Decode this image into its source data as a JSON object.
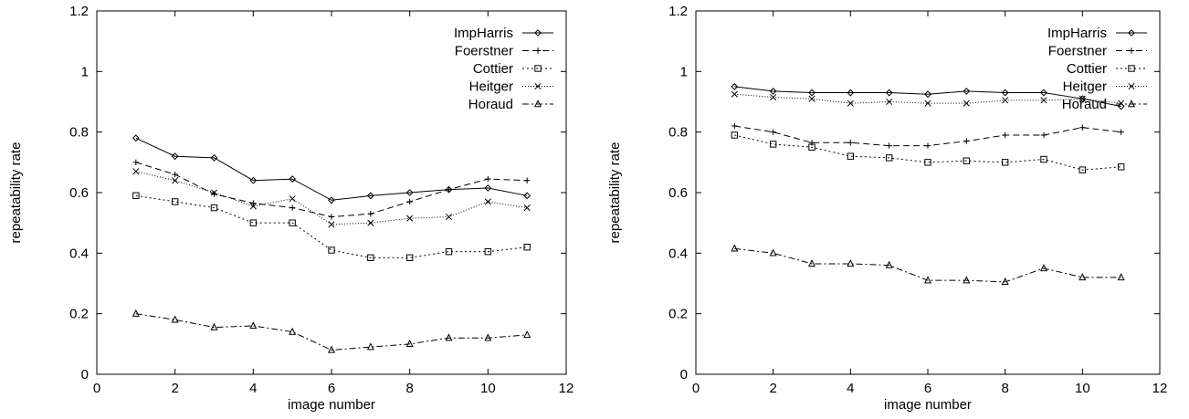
{
  "chart_data": [
    {
      "type": "line",
      "xlabel": "image number",
      "ylabel": "repeatability rate",
      "xlim": [
        0,
        12
      ],
      "ylim": [
        0,
        1.2
      ],
      "xticks": [
        "0",
        "2",
        "4",
        "6",
        "8",
        "10",
        "12"
      ],
      "yticks": [
        "0",
        "0.2",
        "0.4",
        "0.6",
        "0.8",
        "1",
        "1.2"
      ],
      "grid": false,
      "legend_position": "top-right",
      "x": [
        1,
        2,
        3,
        4,
        5,
        6,
        7,
        8,
        9,
        10,
        11
      ],
      "series": [
        {
          "name": "ImpHarris",
          "marker": "diamond",
          "dash": "solid",
          "values": [
            0.78,
            0.72,
            0.715,
            0.64,
            0.645,
            0.575,
            0.59,
            0.6,
            0.61,
            0.615,
            0.59
          ]
        },
        {
          "name": "Foerstner",
          "marker": "plus",
          "dash": "dashed",
          "values": [
            0.7,
            0.66,
            0.595,
            0.565,
            0.55,
            0.52,
            0.53,
            0.57,
            0.61,
            0.645,
            0.64
          ]
        },
        {
          "name": "Cottier",
          "marker": "square",
          "dash": "dotted",
          "values": [
            0.59,
            0.57,
            0.55,
            0.5,
            0.5,
            0.41,
            0.385,
            0.385,
            0.405,
            0.405,
            0.42
          ]
        },
        {
          "name": "Heitger",
          "marker": "cross",
          "dash": "fine-dotted",
          "values": [
            0.67,
            0.64,
            0.6,
            0.555,
            0.58,
            0.495,
            0.5,
            0.515,
            0.52,
            0.57,
            0.55
          ]
        },
        {
          "name": "Horaud",
          "marker": "triangle",
          "dash": "dash-dot",
          "values": [
            0.2,
            0.18,
            0.155,
            0.16,
            0.14,
            0.08,
            0.09,
            0.1,
            0.12,
            0.12,
            0.13
          ]
        }
      ]
    },
    {
      "type": "line",
      "xlabel": "image number",
      "ylabel": "repeatability rate",
      "xlim": [
        0,
        12
      ],
      "ylim": [
        0,
        1.2
      ],
      "xticks": [
        "0",
        "2",
        "4",
        "6",
        "8",
        "10",
        "12"
      ],
      "yticks": [
        "0",
        "0.2",
        "0.4",
        "0.6",
        "0.8",
        "1",
        "1.2"
      ],
      "grid": false,
      "legend_position": "top-right",
      "x": [
        1,
        2,
        3,
        4,
        5,
        6,
        7,
        8,
        9,
        10,
        11
      ],
      "series": [
        {
          "name": "ImpHarris",
          "marker": "diamond",
          "dash": "solid",
          "values": [
            0.95,
            0.935,
            0.93,
            0.93,
            0.93,
            0.925,
            0.935,
            0.93,
            0.93,
            0.91,
            0.885
          ]
        },
        {
          "name": "Foerstner",
          "marker": "plus",
          "dash": "dashed",
          "values": [
            0.82,
            0.8,
            0.765,
            0.765,
            0.755,
            0.755,
            0.77,
            0.79,
            0.79,
            0.815,
            0.8
          ]
        },
        {
          "name": "Cottier",
          "marker": "square",
          "dash": "dotted",
          "values": [
            0.79,
            0.76,
            0.75,
            0.72,
            0.715,
            0.7,
            0.705,
            0.7,
            0.71,
            0.675,
            0.685
          ]
        },
        {
          "name": "Heitger",
          "marker": "cross",
          "dash": "fine-dotted",
          "values": [
            0.925,
            0.915,
            0.91,
            0.895,
            0.9,
            0.895,
            0.895,
            0.905,
            0.905,
            0.91,
            0.895
          ]
        },
        {
          "name": "Horaud",
          "marker": "triangle",
          "dash": "dash-dot",
          "values": [
            0.415,
            0.4,
            0.365,
            0.365,
            0.36,
            0.31,
            0.31,
            0.305,
            0.35,
            0.32,
            0.32
          ]
        }
      ]
    }
  ]
}
